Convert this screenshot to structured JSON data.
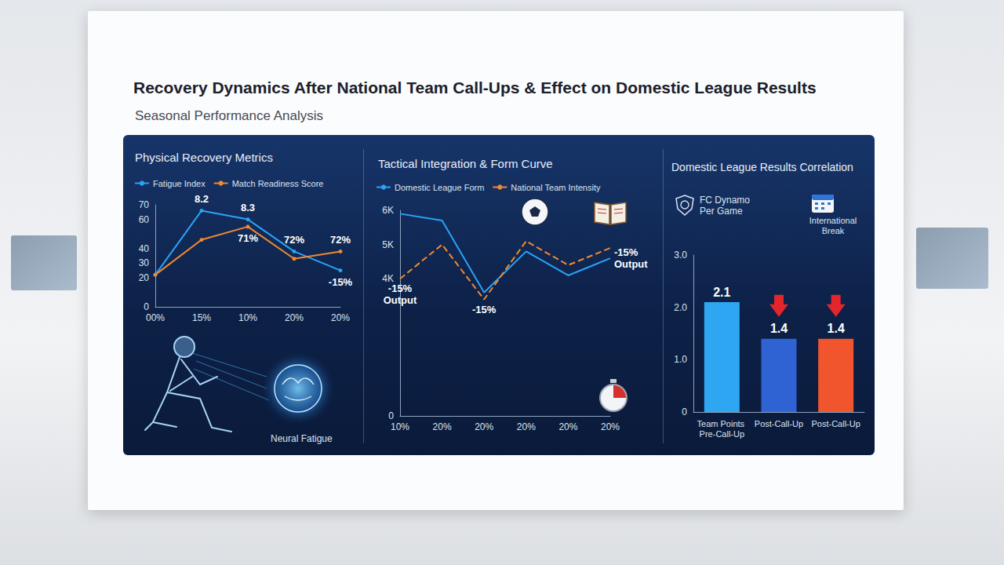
{
  "header": {
    "title": "Recovery Dynamics After National Team Call-Ups & Effect on Domestic League Results",
    "subtitle": "Seasonal Performance Analysis"
  },
  "chart_data": [
    {
      "type": "line",
      "title": "Physical Recovery Metrics",
      "categories": [
        "00%",
        "15%",
        "10%",
        "20%",
        "20%"
      ],
      "series": [
        {
          "name": "Fatigue Index",
          "color": "#2aa3f5",
          "values": [
            22,
            66,
            60,
            38,
            25
          ]
        },
        {
          "name": "Match Readiness Score",
          "color": "#f08a2e",
          "values": [
            22,
            46,
            55,
            33,
            38
          ]
        }
      ],
      "ylim": [
        0,
        70
      ],
      "yticks": [
        0,
        20,
        30,
        40,
        60,
        70
      ],
      "grid": false,
      "legend": "top-left",
      "marker": "circle",
      "annotations": [
        {
          "text": "8.2",
          "series": "Fatigue Index",
          "index": 1
        },
        {
          "text": "8.3",
          "series": "Fatigue Index",
          "index": 2
        },
        {
          "text": "71%",
          "series": "Match Readiness Score",
          "index": 2
        },
        {
          "text": "72%",
          "series": "Fatigue Index",
          "index": 3
        },
        {
          "text": "72%",
          "series": "Match Readiness Score",
          "index": 4
        },
        {
          "text": "-15%",
          "series": "Fatigue Index",
          "index": 4
        }
      ],
      "caption": "Neural Fatigue"
    },
    {
      "type": "line",
      "title": "Tactical Integration & Form Curve",
      "categories": [
        "10%",
        "20%",
        "20%",
        "20%",
        "20%",
        "20%"
      ],
      "series": [
        {
          "name": "Domestic League Form",
          "color": "#2aa3f5",
          "line_style": "solid",
          "values": [
            5900,
            5700,
            3600,
            4800,
            4100,
            4600
          ]
        },
        {
          "name": "National Team Intensity",
          "color": "#f08a2e",
          "line_style": "dashed",
          "values": [
            4000,
            5000,
            3400,
            5100,
            4400,
            4900
          ]
        }
      ],
      "ylim": [
        0,
        6000
      ],
      "yticks": [
        0,
        {
          "value": 4000,
          "label": "4K"
        },
        {
          "value": 5000,
          "label": "5K"
        },
        {
          "value": 6000,
          "label": "6K"
        }
      ],
      "grid": false,
      "legend": "top-left",
      "annotations": [
        {
          "text": "-15% Output",
          "series": "National Team Intensity",
          "index": 0
        },
        {
          "text": "-15%",
          "series": "National Team Intensity",
          "index": 2
        },
        {
          "text": "-15% Output",
          "series": "Domestic League Form",
          "index": 5
        }
      ]
    },
    {
      "type": "bar",
      "title": "Domestic League Results Correlation",
      "subtitle": "FC Dynamo Per Game",
      "note": "International Break",
      "categories": [
        "Team Points Pre-Call-Up",
        "Post-Call-Up",
        "Post-Call-Up"
      ],
      "values": [
        2.1,
        1.4,
        1.4
      ],
      "colors": [
        "#2ea6f2",
        "#2f63d4",
        "#f0552e"
      ],
      "ylim": [
        0,
        3
      ],
      "yticks": [
        0,
        {
          "value": 1,
          "label": "1.0"
        },
        {
          "value": 2,
          "label": "2.0"
        },
        {
          "value": 3,
          "label": "3.0"
        }
      ],
      "grid": false,
      "data_labels": true
    }
  ]
}
